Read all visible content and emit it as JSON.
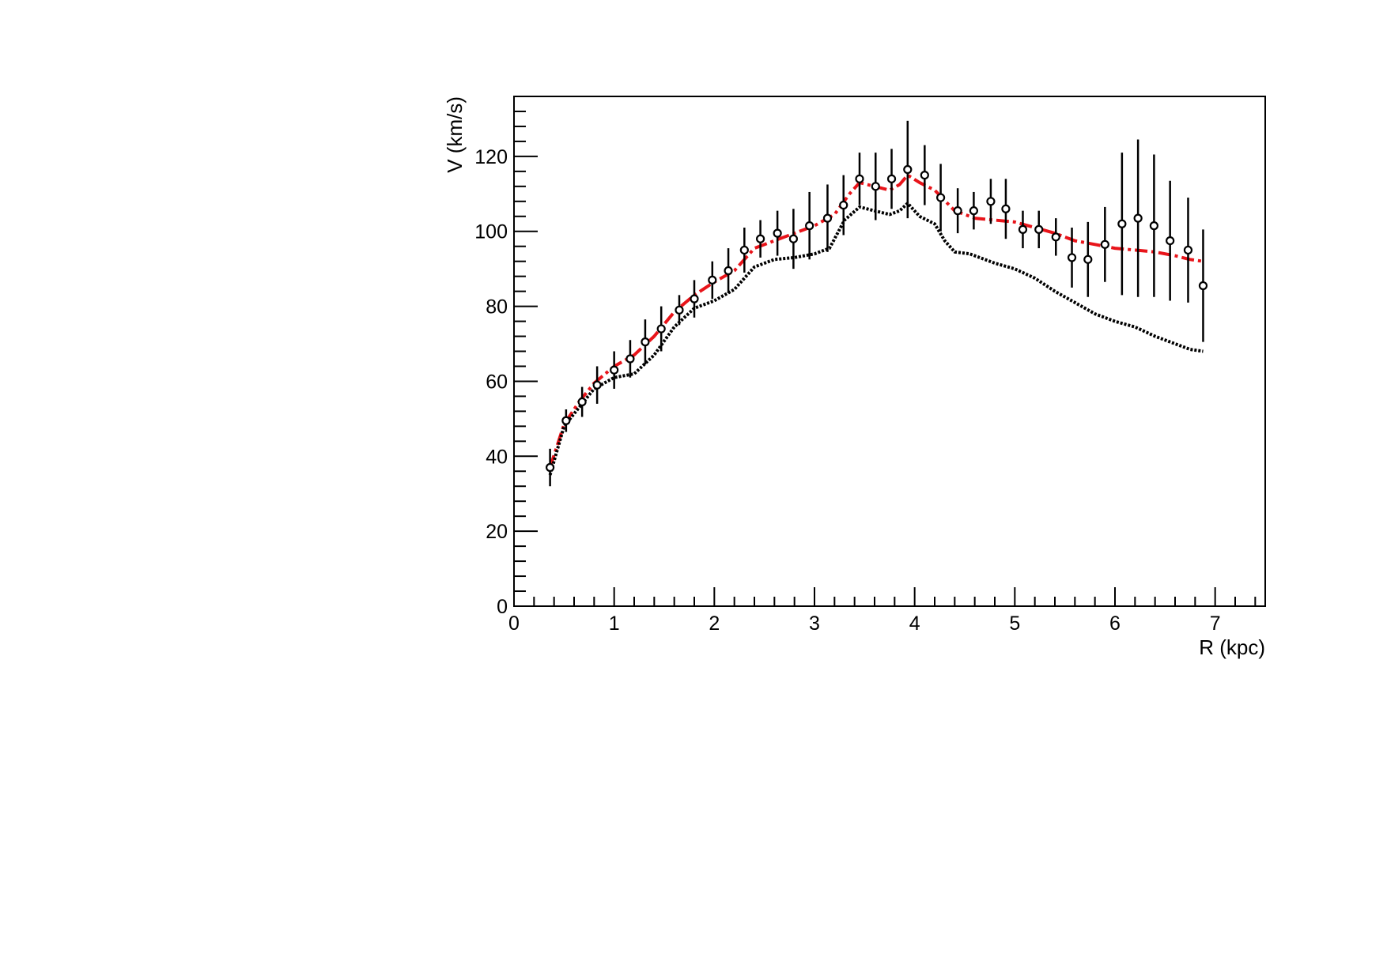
{
  "chart_data": {
    "type": "scatter",
    "title": "",
    "xlabel": "R (kpc)",
    "ylabel": "V (km/s)",
    "xlim": [
      0,
      7.5
    ],
    "ylim": [
      0,
      136
    ],
    "x_ticks": [
      0,
      1,
      2,
      3,
      4,
      5,
      6,
      7
    ],
    "y_ticks": [
      0,
      20,
      40,
      60,
      80,
      100,
      120
    ],
    "x_tick_labels": [
      "0",
      "1",
      "2",
      "3",
      "4",
      "5",
      "6",
      "7"
    ],
    "y_tick_labels": [
      "0",
      "20",
      "40",
      "60",
      "80",
      "100",
      "120"
    ],
    "grid": false,
    "legend": "none",
    "series": [
      {
        "style": "points-with-error-bars",
        "color": "#000000",
        "x": [
          0.36,
          0.52,
          0.68,
          0.83,
          1.0,
          1.16,
          1.31,
          1.47,
          1.65,
          1.8,
          1.98,
          2.14,
          2.3,
          2.46,
          2.63,
          2.79,
          2.95,
          3.13,
          3.29,
          3.45,
          3.61,
          3.77,
          3.93,
          4.1,
          4.26,
          4.43,
          4.59,
          4.76,
          4.91,
          5.08,
          5.24,
          5.41,
          5.57,
          5.73,
          5.9,
          6.07,
          6.23,
          6.39,
          6.55,
          6.73,
          6.88
        ],
        "y": [
          37,
          49.5,
          54.5,
          59,
          63,
          66,
          70.5,
          74,
          79,
          82,
          87,
          89.5,
          95,
          98,
          99.5,
          98,
          101.5,
          103.5,
          107,
          114,
          112,
          114,
          116.5,
          115,
          109,
          105.5,
          105.5,
          108,
          106,
          100.5,
          100.5,
          98.5,
          93,
          92.5,
          96.5,
          102,
          103.5,
          101.5,
          97.5,
          95,
          85.5
        ],
        "err": [
          5,
          3,
          4,
          5,
          5,
          5,
          6,
          6,
          4,
          5,
          5,
          6,
          6,
          5,
          6,
          8,
          9,
          9,
          8,
          7,
          9,
          8,
          13,
          8,
          9,
          6,
          5,
          6,
          8,
          5,
          5,
          5,
          8,
          10,
          10,
          19,
          21,
          19,
          16,
          14,
          15
        ]
      },
      {
        "style": "dash-dot",
        "color": "#e8141a",
        "x": [
          0.36,
          0.5,
          0.65,
          0.8,
          1.0,
          1.2,
          1.4,
          1.6,
          1.8,
          2.0,
          2.2,
          2.4,
          2.6,
          2.8,
          3.0,
          3.2,
          3.35,
          3.45,
          3.6,
          3.75,
          3.85,
          3.93,
          4.05,
          4.2,
          4.4,
          4.6,
          4.8,
          5.0,
          5.2,
          5.4,
          5.6,
          5.8,
          6.0,
          6.2,
          6.4,
          6.6,
          6.75,
          6.88
        ],
        "y": [
          37,
          48.5,
          54.5,
          59.5,
          64,
          67,
          72,
          78.5,
          83,
          86.5,
          89.5,
          95.5,
          97.5,
          99.5,
          101.5,
          104.5,
          110,
          113,
          112,
          111,
          112.5,
          115,
          113,
          111,
          105.5,
          103.5,
          103,
          102.5,
          101,
          99.5,
          97.5,
          96.5,
          95.5,
          95,
          94.5,
          93.5,
          92.5,
          92
        ]
      },
      {
        "style": "dotted",
        "color": "#000000",
        "x": [
          0.36,
          0.5,
          0.65,
          0.8,
          1.0,
          1.2,
          1.4,
          1.6,
          1.8,
          2.0,
          2.2,
          2.4,
          2.6,
          2.8,
          3.0,
          3.15,
          3.3,
          3.45,
          3.6,
          3.75,
          3.85,
          3.93,
          4.05,
          4.2,
          4.3,
          4.4,
          4.55,
          4.8,
          5.0,
          5.2,
          5.4,
          5.6,
          5.8,
          6.0,
          6.2,
          6.4,
          6.6,
          6.75,
          6.88
        ],
        "y": [
          35,
          48,
          53,
          58,
          61,
          62,
          67,
          74.5,
          79.5,
          81.5,
          84.5,
          90.5,
          92.5,
          93,
          94,
          95.5,
          103,
          106.5,
          105.5,
          104.5,
          105.5,
          107.5,
          104,
          102,
          97.5,
          94.5,
          94,
          91.5,
          90,
          87.5,
          84,
          81,
          78,
          76,
          74.5,
          72,
          70,
          68.5,
          68
        ]
      }
    ]
  }
}
